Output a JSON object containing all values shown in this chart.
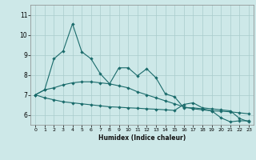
{
  "xlabel": "Humidex (Indice chaleur)",
  "xlim": [
    -0.5,
    23.5
  ],
  "ylim": [
    5.5,
    11.5
  ],
  "yticks": [
    6,
    7,
    8,
    9,
    10,
    11
  ],
  "xticks": [
    0,
    1,
    2,
    3,
    4,
    5,
    6,
    7,
    8,
    9,
    10,
    11,
    12,
    13,
    14,
    15,
    16,
    17,
    18,
    19,
    20,
    21,
    22,
    23
  ],
  "bg_color": "#cde8e8",
  "line_color": "#1a6b6b",
  "grid_color": "#a8cccc",
  "line1_x": [
    0,
    1,
    2,
    3,
    4,
    5,
    6,
    7,
    8,
    9,
    10,
    11,
    12,
    13,
    14,
    15,
    16,
    17,
    18,
    19,
    20,
    21,
    22,
    23
  ],
  "line1_y": [
    7.0,
    7.25,
    8.8,
    9.2,
    10.55,
    9.15,
    8.8,
    8.05,
    7.55,
    8.35,
    8.35,
    7.95,
    8.3,
    7.85,
    7.05,
    6.9,
    6.35,
    6.35,
    6.3,
    6.2,
    5.85,
    5.65,
    5.7,
    5.7
  ],
  "line2_x": [
    0,
    1,
    2,
    3,
    4,
    5,
    6,
    7,
    8,
    9,
    10,
    11,
    12,
    13,
    14,
    15,
    16,
    17,
    18,
    19,
    20,
    21,
    22,
    23
  ],
  "line2_y": [
    7.0,
    7.25,
    7.35,
    7.5,
    7.6,
    7.65,
    7.65,
    7.6,
    7.55,
    7.45,
    7.35,
    7.15,
    7.0,
    6.85,
    6.7,
    6.55,
    6.4,
    6.3,
    6.25,
    6.2,
    6.18,
    6.15,
    6.1,
    6.05
  ],
  "line3_x": [
    0,
    1,
    2,
    3,
    4,
    5,
    6,
    7,
    8,
    9,
    10,
    11,
    12,
    13,
    14,
    15,
    16,
    17,
    18,
    19,
    20,
    21,
    22,
    23
  ],
  "line3_y": [
    7.0,
    6.85,
    6.75,
    6.65,
    6.6,
    6.55,
    6.5,
    6.45,
    6.4,
    6.38,
    6.35,
    6.33,
    6.3,
    6.28,
    6.25,
    6.22,
    6.52,
    6.6,
    6.35,
    6.3,
    6.25,
    6.2,
    5.82,
    5.65
  ]
}
